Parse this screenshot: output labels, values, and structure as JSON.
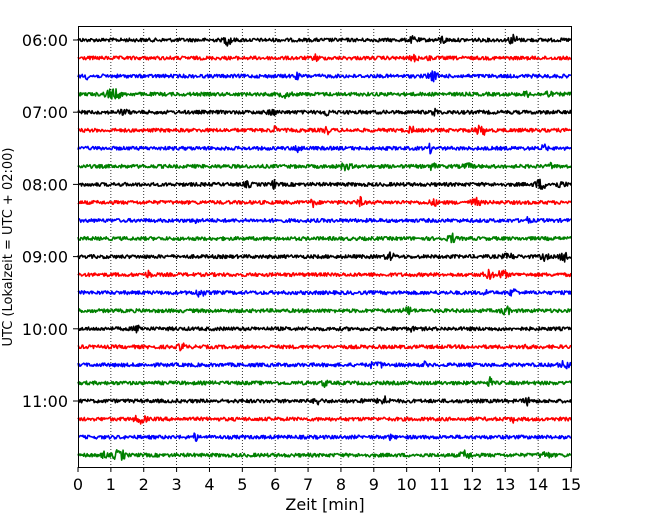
{
  "chart_data": {
    "type": "line",
    "title": "",
    "xlabel": "Zeit  [min]",
    "ylabel": "UTC (Lokalzeit = UTC + 02:00)",
    "xlim": [
      0,
      15
    ],
    "x_ticks": [
      "0",
      "1",
      "2",
      "3",
      "4",
      "5",
      "6",
      "7",
      "8",
      "9",
      "10",
      "11",
      "12",
      "13",
      "14",
      "15"
    ],
    "y_tick_labels": [
      "06:00",
      "07:00",
      "08:00",
      "09:00",
      "10:00",
      "11:00"
    ],
    "grid": "vertical dotted lines at each minute",
    "trace_interval_minutes": 15,
    "start_time": "06:00",
    "trace_colors": [
      "#000000",
      "#ff0000",
      "#0000ff",
      "#008000"
    ],
    "series": [
      {
        "start": "06:00",
        "color": "#000000"
      },
      {
        "start": "06:15",
        "color": "#ff0000"
      },
      {
        "start": "06:30",
        "color": "#0000ff"
      },
      {
        "start": "06:45",
        "color": "#008000"
      },
      {
        "start": "07:00",
        "color": "#000000"
      },
      {
        "start": "07:15",
        "color": "#ff0000"
      },
      {
        "start": "07:30",
        "color": "#0000ff"
      },
      {
        "start": "07:45",
        "color": "#008000"
      },
      {
        "start": "08:00",
        "color": "#000000"
      },
      {
        "start": "08:15",
        "color": "#ff0000"
      },
      {
        "start": "08:30",
        "color": "#0000ff"
      },
      {
        "start": "08:45",
        "color": "#008000"
      },
      {
        "start": "09:00",
        "color": "#000000"
      },
      {
        "start": "09:15",
        "color": "#ff0000"
      },
      {
        "start": "09:30",
        "color": "#0000ff"
      },
      {
        "start": "09:45",
        "color": "#008000"
      },
      {
        "start": "10:00",
        "color": "#000000"
      },
      {
        "start": "10:15",
        "color": "#ff0000"
      },
      {
        "start": "10:30",
        "color": "#0000ff"
      },
      {
        "start": "10:45",
        "color": "#008000"
      },
      {
        "start": "11:00",
        "color": "#000000"
      },
      {
        "start": "11:15",
        "color": "#ff0000"
      },
      {
        "start": "11:30",
        "color": "#0000ff"
      },
      {
        "start": "11:45",
        "color": "#008000"
      }
    ]
  }
}
